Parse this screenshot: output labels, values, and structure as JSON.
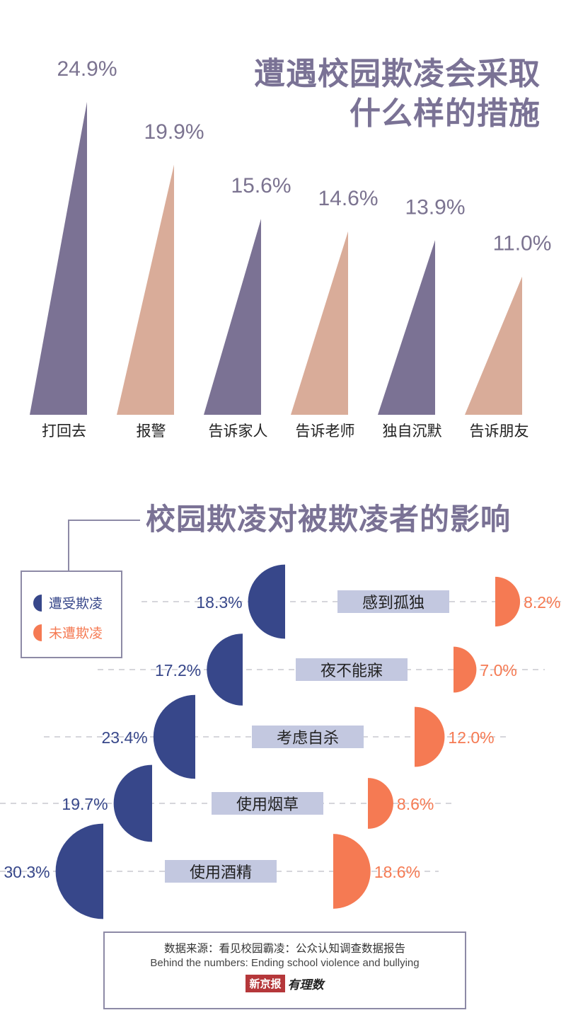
{
  "colors": {
    "purple": "#7b7294",
    "pink": "#d9ac99",
    "navy": "#37478a",
    "orange": "#f57a53",
    "label_bg": "#c3c8e0",
    "title": "#7a7295"
  },
  "title1": {
    "line1": "遭遇校园欺凌会采取",
    "line2": "什么样的措施"
  },
  "title2": "校园欺凌对被欺凌者的影响",
  "legend": {
    "bullied": "遭受欺凌",
    "not_bullied": "未遭欺凌"
  },
  "source": {
    "line1": "数据来源：看见校园霸凌：公众认知调查数据报告",
    "line2": "Behind the numbers: Ending school violence and bullying",
    "logo_box": "新京报",
    "logo_script": "有理数"
  },
  "chart_data": [
    {
      "type": "bar",
      "title": "遭遇校园欺凌会采取什么样的措施",
      "categories": [
        "打回去",
        "报警",
        "告诉家人",
        "告诉老师",
        "独自沉默",
        "告诉朋友"
      ],
      "values": [
        24.9,
        19.9,
        15.6,
        14.6,
        13.9,
        11.0
      ],
      "value_labels": [
        "24.9%",
        "19.9%",
        "15.6%",
        "14.6%",
        "13.9%",
        "11.0%"
      ],
      "unit": "%"
    },
    {
      "type": "bar",
      "title": "校园欺凌对被欺凌者的影响",
      "categories": [
        "感到孤独",
        "夜不能寐",
        "考虑自杀",
        "使用烟草",
        "使用酒精"
      ],
      "series": [
        {
          "name": "遭受欺凌",
          "values": [
            18.3,
            17.2,
            23.4,
            19.7,
            30.3
          ],
          "labels": [
            "18.3%",
            "17.2%",
            "23.4%",
            "19.7%",
            "30.3%"
          ]
        },
        {
          "name": "未遭欺凌",
          "values": [
            8.2,
            7.0,
            12.0,
            8.6,
            18.6
          ],
          "labels": [
            "8.2%",
            "7.0%",
            "12.0%",
            "8.6%",
            "18.6%"
          ]
        }
      ],
      "unit": "%"
    }
  ]
}
